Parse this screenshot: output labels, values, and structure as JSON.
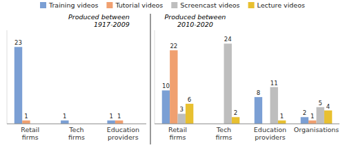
{
  "chart_data": [
    {
      "type": "bar",
      "categories": [
        "Retail\nfirms",
        "Tech\nfirms",
        "Education\nproviders"
      ],
      "series": [
        {
          "name": "Training videos",
          "color": "#7B9FD4",
          "values": [
            23,
            1,
            1
          ]
        },
        {
          "name": "Tutorial videos",
          "color": "#F0A070",
          "values": [
            1,
            0,
            1
          ]
        },
        {
          "name": "Screencast videos",
          "color": "#BEBEBE",
          "values": [
            0,
            0,
            0
          ]
        },
        {
          "name": "Lecture videos",
          "color": "#E8C030",
          "values": [
            0,
            0,
            0
          ]
        }
      ],
      "annotations": [
        "Produced between\n1917-2009"
      ],
      "ylim": [
        0,
        28
      ],
      "tick_labels": "x",
      "grid": false,
      "legend": "top",
      "data_labels": true
    },
    {
      "type": "bar",
      "categories": [
        "Retail\nfirms",
        "Tech\nfirms",
        "Education\nproviders",
        "Organisations"
      ],
      "series": [
        {
          "name": "Training videos",
          "color": "#7B9FD4",
          "values": [
            10,
            0,
            8,
            2
          ]
        },
        {
          "name": "Tutorial videos",
          "color": "#F0A070",
          "values": [
            22,
            0,
            0,
            1
          ]
        },
        {
          "name": "Screencast videos",
          "color": "#BEBEBE",
          "values": [
            3,
            24,
            11,
            5
          ]
        },
        {
          "name": "Lecture videos",
          "color": "#E8C030",
          "values": [
            6,
            2,
            1,
            4
          ]
        }
      ],
      "annotations": [
        "Produced between\n2010-2020"
      ],
      "ylim": [
        0,
        28
      ],
      "tick_labels": "x",
      "grid": false,
      "legend": "top",
      "data_labels": true
    }
  ]
}
